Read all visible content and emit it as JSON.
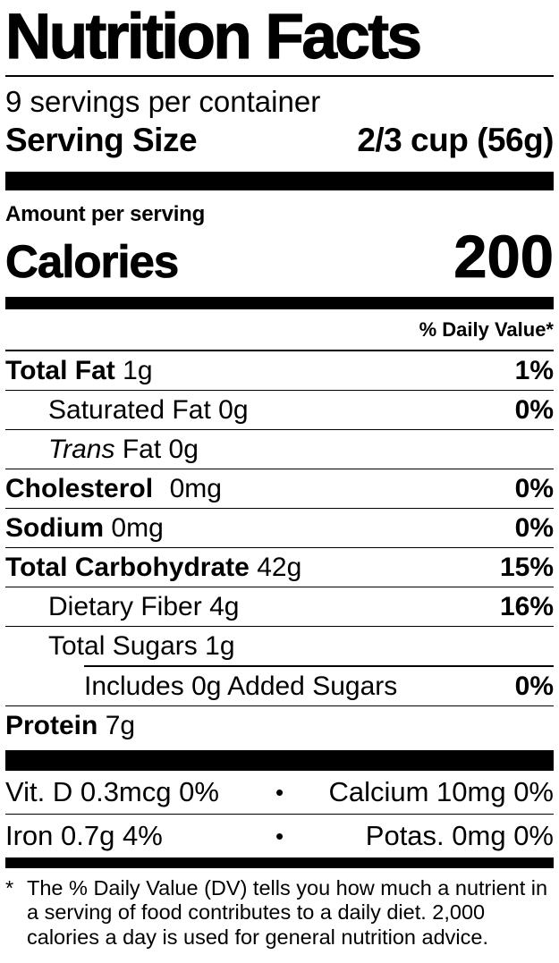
{
  "title": "Nutrition Facts",
  "servings_per_container": "9 servings per container",
  "serving_size": {
    "label": "Serving Size",
    "value": "2/3 cup (56g)"
  },
  "amount_per_serving_label": "Amount per serving",
  "calories": {
    "label": "Calories",
    "value": "200"
  },
  "daily_value_header": "% Daily Value*",
  "nutrients": [
    {
      "name": "Total Fat",
      "amount": "1g",
      "dv": "1%"
    },
    {
      "name": "Saturated Fat",
      "amount": "0g",
      "dv": "0%"
    },
    {
      "name": "Trans",
      "amount": "Fat 0g",
      "dv": ""
    },
    {
      "name": "Cholesterol",
      "amount": "0mg",
      "dv": "0%"
    },
    {
      "name": "Sodium",
      "amount": "0mg",
      "dv": "0%"
    },
    {
      "name": "Total Carbohydrate",
      "amount": "42g",
      "dv": "15%"
    },
    {
      "name": "Dietary Fiber",
      "amount": "4g",
      "dv": "16%"
    },
    {
      "name": "Total Sugars",
      "amount": "1g",
      "dv": ""
    },
    {
      "name": "Includes 0g Added Sugars",
      "amount": "",
      "dv": "0%"
    },
    {
      "name": "Protein",
      "amount": "7g",
      "dv": ""
    }
  ],
  "micronutrients": {
    "separator": "•",
    "rows": [
      {
        "left": "Vit. D 0.3mcg 0%",
        "right": "Calcium 10mg 0%"
      },
      {
        "left": "Iron 0.7g 4%",
        "right": "Potas. 0mg 0%"
      }
    ]
  },
  "footnote": {
    "marker": "*",
    "text": "The % Daily Value (DV) tells you how much a nutrient in a serving of food contributes to a daily diet. 2,000 calories a day is used for general nutrition advice."
  },
  "colors": {
    "text": "#000000",
    "background": "#ffffff"
  }
}
